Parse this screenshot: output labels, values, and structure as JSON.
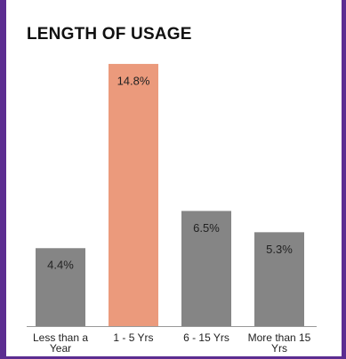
{
  "chart_data": {
    "type": "bar",
    "title": "LENGTH OF USAGE",
    "categories": [
      "Less than a Year",
      "1 - 5 Yrs",
      "6 - 15 Yrs",
      "More than 15 Yrs"
    ],
    "values": [
      4.4,
      14.8,
      6.5,
      5.3
    ],
    "value_labels": [
      "4.4%",
      "14.8%",
      "6.5%",
      "5.3%"
    ],
    "colors": [
      "#858585",
      "#eb9a7c",
      "#858585",
      "#858585"
    ],
    "ylim": [
      0,
      16
    ]
  }
}
